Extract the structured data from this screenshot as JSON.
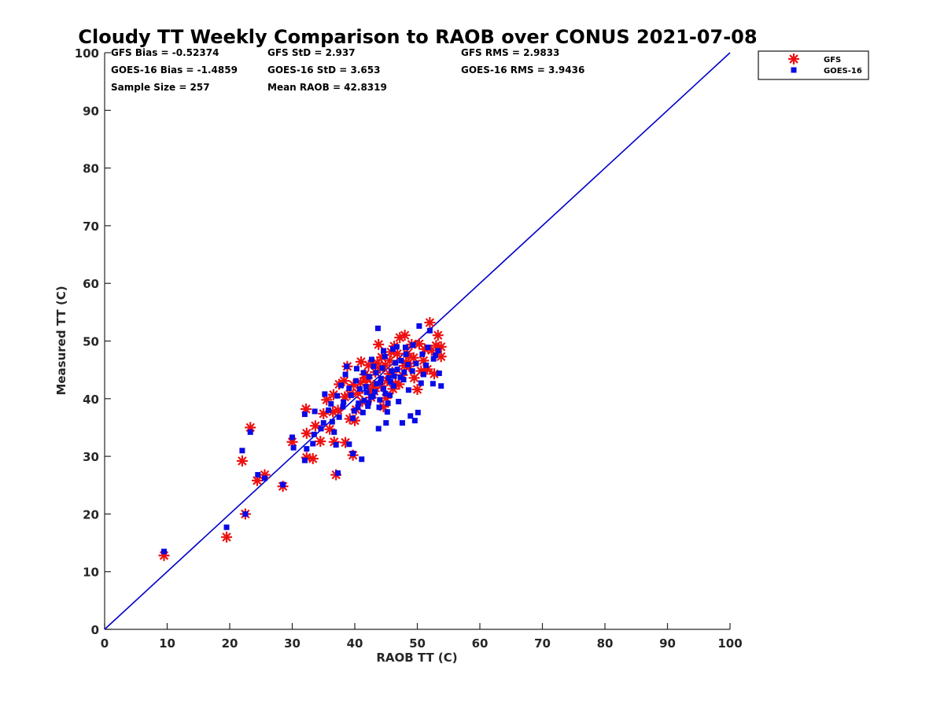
{
  "chart_data": {
    "type": "scatter",
    "title": "Cloudy TT Weekly Comparison to RAOB over CONUS 2021-07-08",
    "xlabel": "RAOB TT (C)",
    "ylabel": "Measured TT (C)",
    "xlim": [
      0,
      100
    ],
    "ylim": [
      0,
      100
    ],
    "xticks": [
      "0",
      "10",
      "20",
      "30",
      "40",
      "50",
      "60",
      "70",
      "80",
      "90",
      "100"
    ],
    "yticks": [
      "0",
      "10",
      "20",
      "30",
      "40",
      "50",
      "60",
      "70",
      "80",
      "90",
      "100"
    ],
    "grid": false,
    "legend_position": "top-right outside",
    "reference_line": {
      "name": "1:1 line",
      "x": [
        0,
        100
      ],
      "y": [
        0,
        100
      ],
      "color": "#0000cc"
    },
    "stats": {
      "gfs_bias": "GFS Bias = -0.52374",
      "goes_bias": "GOES-16 Bias = -1.4859",
      "sample_size": "Sample Size = 257",
      "gfs_std": "GFS StD = 2.937",
      "goes_std": "GOES-16 StD = 3.653",
      "mean_raob": "Mean RAOB = 42.8319",
      "gfs_rms": "GFS RMS = 2.9833",
      "goes_rms": "GOES-16 RMS = 3.9436"
    },
    "series": [
      {
        "name": "GFS",
        "marker": "asterisk",
        "color": "#ee1111",
        "points": [
          [
            9.5,
            12.8
          ],
          [
            19.5,
            16
          ],
          [
            22.5,
            20
          ],
          [
            22,
            29.2
          ],
          [
            23.3,
            35
          ],
          [
            24.4,
            25.8
          ],
          [
            25.6,
            26.8
          ],
          [
            28.5,
            24.8
          ],
          [
            30,
            32.5
          ],
          [
            32.2,
            38.2
          ],
          [
            32.3,
            29.8
          ],
          [
            32.3,
            34
          ],
          [
            33.3,
            29.6
          ],
          [
            33.7,
            35.3
          ],
          [
            34.5,
            32.6
          ],
          [
            35,
            37.4
          ],
          [
            35.5,
            39.8
          ],
          [
            36,
            34.7
          ],
          [
            36.7,
            32.5
          ],
          [
            37,
            26.8
          ],
          [
            37.3,
            38
          ],
          [
            37.5,
            42.5
          ],
          [
            38.4,
            40.3
          ],
          [
            38.5,
            32.4
          ],
          [
            38.8,
            45.6
          ],
          [
            39.2,
            36.5
          ],
          [
            39.7,
            30.2
          ],
          [
            40,
            36.2
          ],
          [
            40.5,
            41
          ],
          [
            41,
            46.4
          ],
          [
            41.2,
            39.5
          ],
          [
            41.8,
            43.5
          ],
          [
            42.2,
            45.8
          ],
          [
            42.6,
            40.2
          ],
          [
            43,
            42.3
          ],
          [
            43.3,
            44.6
          ],
          [
            43.8,
            49.4
          ],
          [
            44.3,
            47.2
          ],
          [
            44.6,
            38.6
          ],
          [
            45,
            40.1
          ],
          [
            45.2,
            43.1
          ],
          [
            45.6,
            46.6
          ],
          [
            46,
            44.6
          ],
          [
            46.5,
            42.6
          ],
          [
            46.8,
            47.8
          ],
          [
            47.2,
            50.6
          ],
          [
            47.6,
            44.1
          ],
          [
            48,
            51
          ],
          [
            48.4,
            47.8
          ],
          [
            48.7,
            45.6
          ],
          [
            49.1,
            49.4
          ],
          [
            49.5,
            43.6
          ],
          [
            50,
            41.6
          ],
          [
            50.3,
            49.5
          ],
          [
            51,
            46.6
          ],
          [
            51.2,
            48.6
          ],
          [
            52,
            53.2
          ],
          [
            52.3,
            48.4
          ],
          [
            52.7,
            44.3
          ],
          [
            53,
            49.2
          ],
          [
            53.3,
            51
          ],
          [
            53.8,
            49
          ],
          [
            53.8,
            47.3
          ],
          [
            44,
            45.3
          ],
          [
            41.6,
            44.2
          ],
          [
            40.2,
            38.1
          ],
          [
            39.8,
            42.4
          ],
          [
            42,
            43.6
          ],
          [
            43.6,
            46.2
          ],
          [
            44.9,
            45.8
          ],
          [
            45.5,
            44.3
          ],
          [
            46.1,
            41.7
          ],
          [
            47.1,
            42.5
          ],
          [
            48.2,
            46.3
          ],
          [
            49.4,
            47.1
          ],
          [
            50.6,
            44.8
          ],
          [
            51.6,
            45.1
          ],
          [
            38.3,
            43.1
          ],
          [
            36.6,
            40.7
          ],
          [
            36.5,
            37.7
          ],
          [
            39.2,
            40.8
          ],
          [
            40.9,
            42.8
          ],
          [
            42.4,
            41.4
          ],
          [
            44.2,
            42.2
          ],
          [
            45.8,
            48.1
          ],
          [
            46.3,
            49.1
          ],
          [
            43.1,
            41.3
          ],
          [
            47.9,
            45.7
          ]
        ]
      },
      {
        "name": "GOES-16",
        "marker": "square",
        "color": "#0a0ae6",
        "points": [
          [
            9.5,
            13.5
          ],
          [
            19.5,
            17.7
          ],
          [
            22,
            31
          ],
          [
            22.5,
            20
          ],
          [
            23.3,
            34.2
          ],
          [
            24.5,
            26.8
          ],
          [
            25.6,
            26.2
          ],
          [
            28.5,
            25.1
          ],
          [
            30,
            33.3
          ],
          [
            30.2,
            31.5
          ],
          [
            32,
            29.3
          ],
          [
            32,
            37.3
          ],
          [
            32.3,
            31.3
          ],
          [
            33.3,
            32.2
          ],
          [
            33.5,
            33.8
          ],
          [
            33.6,
            37.8
          ],
          [
            34.6,
            34.8
          ],
          [
            35,
            35.8
          ],
          [
            35.2,
            40.8
          ],
          [
            35.8,
            38
          ],
          [
            36.4,
            36
          ],
          [
            36.7,
            34.2
          ],
          [
            37,
            32
          ],
          [
            37.2,
            40.5
          ],
          [
            37.3,
            27.1
          ],
          [
            37.8,
            42.3
          ],
          [
            38.1,
            38.6
          ],
          [
            38.5,
            44.2
          ],
          [
            38.7,
            45.6
          ],
          [
            39.1,
            32.1
          ],
          [
            39.4,
            40.6
          ],
          [
            39.7,
            30.5
          ],
          [
            39.7,
            36.6
          ],
          [
            40.2,
            43.1
          ],
          [
            40.5,
            38.5
          ],
          [
            40.8,
            41.7
          ],
          [
            41.1,
            29.5
          ],
          [
            41.4,
            44.5
          ],
          [
            41.5,
            39.7
          ],
          [
            41.8,
            42.1
          ],
          [
            42.1,
            38.7
          ],
          [
            42.3,
            43.8
          ],
          [
            42.6,
            40.3
          ],
          [
            43,
            45.6
          ],
          [
            43.2,
            41.2
          ],
          [
            43.5,
            42.6
          ],
          [
            43.7,
            52.2
          ],
          [
            43.8,
            34.8
          ],
          [
            44,
            39.8
          ],
          [
            44.2,
            43.5
          ],
          [
            44.4,
            45.3
          ],
          [
            44.6,
            41.7
          ],
          [
            44.8,
            47.3
          ],
          [
            45,
            35.8
          ],
          [
            45.2,
            37.7
          ],
          [
            45.4,
            43.6
          ],
          [
            45.6,
            40.6
          ],
          [
            45.9,
            44.8
          ],
          [
            46.2,
            42.2
          ],
          [
            46.5,
            46.2
          ],
          [
            46.7,
            49
          ],
          [
            47,
            39.5
          ],
          [
            47.3,
            43.7
          ],
          [
            47.6,
            35.8
          ],
          [
            47.9,
            44.6
          ],
          [
            48.2,
            47.7
          ],
          [
            48.6,
            41.5
          ],
          [
            48.9,
            37
          ],
          [
            49.2,
            44.8
          ],
          [
            49.6,
            36.2
          ],
          [
            50.1,
            37.6
          ],
          [
            50.3,
            52.6
          ],
          [
            50.6,
            42.7
          ],
          [
            51,
            44.2
          ],
          [
            51.4,
            45.8
          ],
          [
            52,
            51.8
          ],
          [
            52.5,
            42.6
          ],
          [
            52.9,
            47.5
          ],
          [
            53.3,
            48.3
          ],
          [
            53.5,
            44.4
          ],
          [
            53.8,
            42.2
          ],
          [
            40.6,
            39.2
          ],
          [
            41.9,
            41.1
          ],
          [
            42.9,
            40.4
          ],
          [
            43.4,
            44.5
          ],
          [
            44.1,
            42.8
          ],
          [
            44.9,
            40.9
          ],
          [
            45.7,
            42.9
          ],
          [
            46.3,
            43.9
          ],
          [
            46.8,
            45.1
          ],
          [
            47.4,
            46.6
          ],
          [
            47.8,
            43.3
          ],
          [
            48.5,
            45.9
          ],
          [
            49.8,
            46.1
          ],
          [
            50.8,
            47.7
          ],
          [
            39.1,
            41.8
          ],
          [
            38.2,
            39.4
          ],
          [
            37.5,
            36.8
          ],
          [
            36.2,
            39.1
          ],
          [
            40.3,
            45.2
          ],
          [
            42.7,
            46.8
          ],
          [
            44.6,
            48.3
          ],
          [
            46.1,
            48.6
          ],
          [
            41.3,
            37.6
          ],
          [
            43.9,
            38.5
          ],
          [
            45.3,
            39.2
          ],
          [
            39.9,
            37.9
          ],
          [
            42.2,
            39.3
          ],
          [
            48.1,
            48.9
          ],
          [
            49.3,
            49.3
          ],
          [
            51.7,
            48.9
          ],
          [
            52.6,
            46.9
          ]
        ]
      }
    ]
  }
}
